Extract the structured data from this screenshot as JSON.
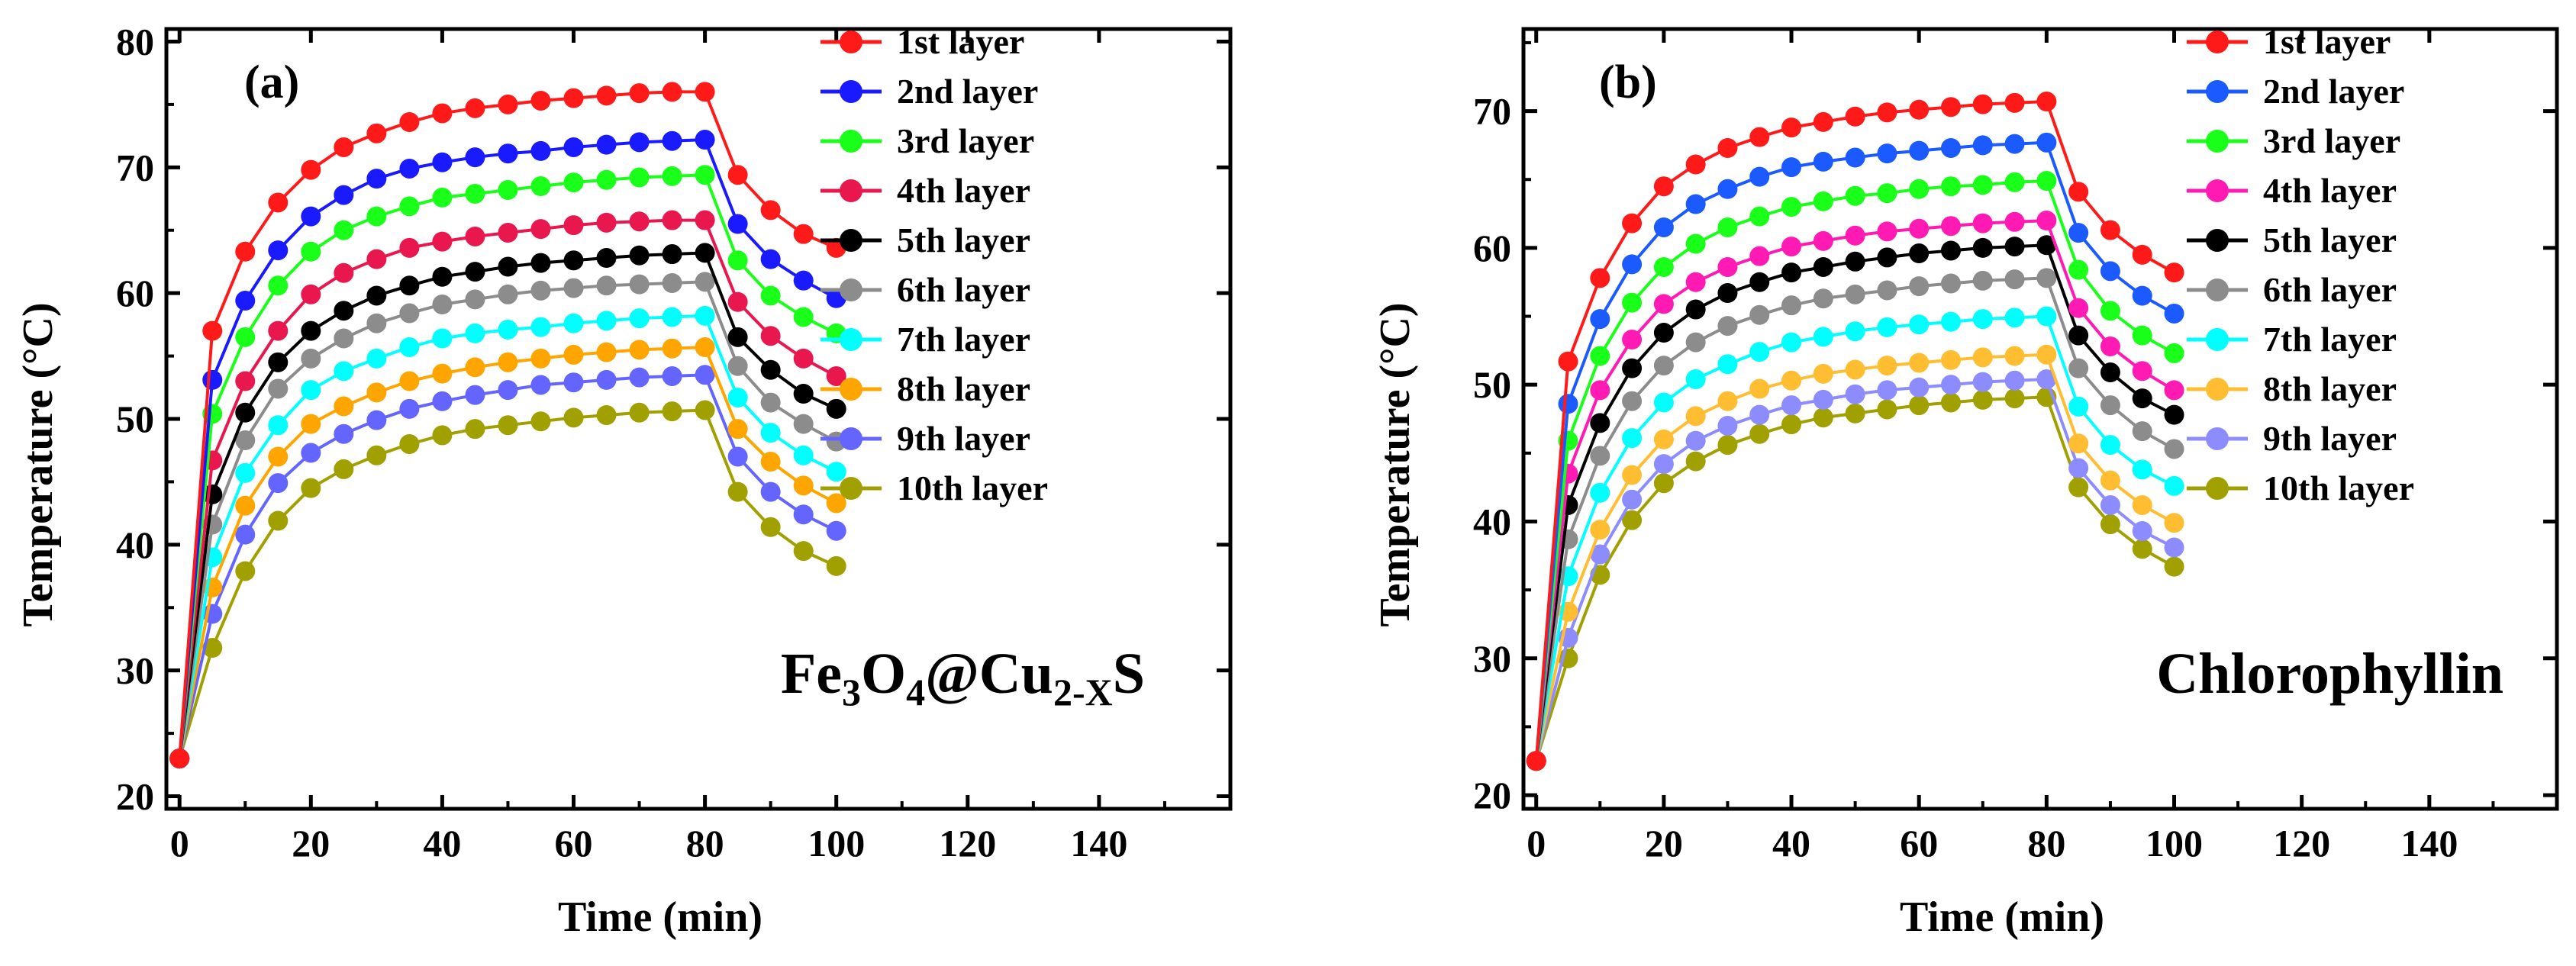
{
  "chart_data": [
    {
      "type": "line",
      "panel_label": "(a)",
      "sample_label": {
        "parts": [
          {
            "text": "Fe",
            "sub": false
          },
          {
            "text": "3",
            "sub": true
          },
          {
            "text": "O",
            "sub": false
          },
          {
            "text": "4",
            "sub": true
          },
          {
            "text": "@Cu",
            "sub": false
          },
          {
            "text": "2-X",
            "sub": true
          },
          {
            "text": "S",
            "sub": false
          }
        ]
      },
      "xlabel": "Time (min)",
      "ylabel": "Temperature (°C)",
      "xlim": [
        -2,
        160
      ],
      "ylim": [
        19,
        81
      ],
      "xticks": [
        0,
        20,
        40,
        60,
        80,
        100,
        120,
        140
      ],
      "yticks": [
        20,
        30,
        40,
        50,
        60,
        70,
        80
      ],
      "legend_position": "top-right",
      "x": [
        0,
        5,
        10,
        15,
        20,
        25,
        30,
        35,
        40,
        45,
        50,
        55,
        60,
        65,
        70,
        75,
        80,
        85,
        90,
        95,
        100
      ],
      "series": [
        {
          "name": "1st layer",
          "color": "#ff1a1a",
          "values": [
            23,
            57,
            63.3,
            67.2,
            69.8,
            71.6,
            72.7,
            73.6,
            74.3,
            74.7,
            75,
            75.3,
            75.5,
            75.7,
            75.9,
            76,
            76,
            69.4,
            66.6,
            64.7,
            63.6
          ]
        },
        {
          "name": "2nd layer",
          "color": "#1a1aff",
          "values": [
            23,
            53.1,
            59.4,
            63.4,
            66.1,
            67.8,
            69.1,
            69.9,
            70.4,
            70.8,
            71.1,
            71.3,
            71.6,
            71.8,
            72,
            72.1,
            72.2,
            65.5,
            62.7,
            61,
            59.6
          ]
        },
        {
          "name": "3rd layer",
          "color": "#1aff1a",
          "values": [
            23,
            50.4,
            56.5,
            60.6,
            63.3,
            65,
            66.1,
            66.9,
            67.6,
            67.9,
            68.2,
            68.5,
            68.8,
            69,
            69.2,
            69.3,
            69.4,
            62.6,
            59.8,
            58.1,
            56.8
          ]
        },
        {
          "name": "4th layer",
          "color": "#e8174e",
          "values": [
            23,
            46.7,
            53,
            57,
            59.9,
            61.6,
            62.7,
            63.6,
            64.1,
            64.5,
            64.8,
            65.1,
            65.4,
            65.6,
            65.7,
            65.8,
            65.8,
            59.3,
            56.6,
            54.8,
            53.4
          ]
        },
        {
          "name": "5th layer",
          "color": "#000000",
          "values": [
            23,
            44,
            50.5,
            54.5,
            57,
            58.6,
            59.8,
            60.6,
            61.3,
            61.7,
            62.1,
            62.4,
            62.6,
            62.8,
            63,
            63.1,
            63.2,
            56.5,
            53.9,
            52,
            50.8
          ]
        },
        {
          "name": "6th layer",
          "color": "#8c8c8c",
          "values": [
            23,
            41.6,
            48.3,
            52.4,
            54.8,
            56.4,
            57.6,
            58.4,
            59.1,
            59.5,
            59.9,
            60.2,
            60.4,
            60.6,
            60.7,
            60.8,
            60.9,
            54.2,
            51.3,
            49.6,
            48.2
          ]
        },
        {
          "name": "7th  layer",
          "color": "#00ffff",
          "values": [
            23,
            39,
            45.7,
            49.5,
            52.3,
            53.8,
            54.8,
            55.7,
            56.4,
            56.8,
            57.1,
            57.3,
            57.6,
            57.8,
            58,
            58.1,
            58.2,
            51.7,
            48.9,
            47.1,
            45.8
          ]
        },
        {
          "name": "8th  layer",
          "color": "#ffa500",
          "values": [
            23,
            36.6,
            43.1,
            47,
            49.6,
            51,
            52.1,
            53,
            53.6,
            54.1,
            54.5,
            54.8,
            55.1,
            55.3,
            55.5,
            55.6,
            55.7,
            49.2,
            46.6,
            44.7,
            43.3
          ]
        },
        {
          "name": "9th  layer",
          "color": "#6464ff",
          "values": [
            23,
            34.5,
            40.8,
            44.9,
            47.3,
            48.8,
            49.9,
            50.8,
            51.4,
            51.9,
            52.3,
            52.7,
            52.9,
            53.1,
            53.3,
            53.4,
            53.5,
            47,
            44.2,
            42.4,
            41.1
          ]
        },
        {
          "name": "10th  layer",
          "color": "#a0a000",
          "values": [
            23,
            31.8,
            37.9,
            41.9,
            44.5,
            46,
            47.1,
            48,
            48.7,
            49.2,
            49.5,
            49.8,
            50.1,
            50.3,
            50.5,
            50.6,
            50.7,
            44.2,
            41.4,
            39.5,
            38.3
          ]
        }
      ]
    },
    {
      "type": "line",
      "panel_label": "(b)",
      "sample_label": {
        "parts": [
          {
            "text": "Chlorophyllin",
            "sub": false
          }
        ]
      },
      "xlabel": "Time (min)",
      "ylabel": "Temperature (°C)",
      "xlim": [
        -2,
        160
      ],
      "ylim": [
        19,
        76
      ],
      "xticks": [
        0,
        20,
        40,
        60,
        80,
        100,
        120,
        140
      ],
      "yticks": [
        20,
        30,
        40,
        50,
        60,
        70
      ],
      "legend_position": "top-right",
      "x": [
        0,
        5,
        10,
        15,
        20,
        25,
        30,
        35,
        40,
        45,
        50,
        55,
        60,
        65,
        70,
        75,
        80,
        85,
        90,
        95,
        100
      ],
      "series": [
        {
          "name": "1st layer",
          "color": "#ff1a1a",
          "values": [
            22.5,
            51.7,
            57.8,
            61.8,
            64.5,
            66.1,
            67.3,
            68.1,
            68.8,
            69.2,
            69.6,
            69.9,
            70.1,
            70.3,
            70.5,
            70.6,
            70.7,
            64.1,
            61.3,
            59.5,
            58.2
          ]
        },
        {
          "name": "2nd layer",
          "color": "#1a5aff",
          "values": [
            22.5,
            48.6,
            54.8,
            58.8,
            61.5,
            63.2,
            64.3,
            65.2,
            65.9,
            66.3,
            66.6,
            66.9,
            67.1,
            67.3,
            67.5,
            67.6,
            67.7,
            61.1,
            58.3,
            56.5,
            55.2
          ]
        },
        {
          "name": "3rd layer",
          "color": "#1aff1a",
          "values": [
            22.5,
            45.9,
            52.1,
            56,
            58.6,
            60.3,
            61.5,
            62.3,
            63,
            63.4,
            63.8,
            64,
            64.3,
            64.5,
            64.6,
            64.8,
            64.9,
            58.4,
            55.4,
            53.6,
            52.3
          ]
        },
        {
          "name": "4th layer",
          "color": "#ff1ab4",
          "values": [
            22.5,
            43.5,
            49.6,
            53.3,
            55.9,
            57.5,
            58.6,
            59.4,
            60.1,
            60.5,
            60.9,
            61.2,
            61.4,
            61.6,
            61.8,
            61.9,
            62,
            55.6,
            52.8,
            51,
            49.6
          ]
        },
        {
          "name": "5th layer",
          "color": "#000000",
          "values": [
            22.5,
            41.2,
            47.2,
            51.2,
            53.8,
            55.5,
            56.7,
            57.5,
            58.2,
            58.6,
            59,
            59.3,
            59.6,
            59.8,
            60,
            60.1,
            60.2,
            53.6,
            50.9,
            49,
            47.8
          ]
        },
        {
          "name": "6th layer",
          "color": "#8c8c8c",
          "values": [
            22.5,
            38.7,
            44.8,
            48.8,
            51.4,
            53.1,
            54.3,
            55.1,
            55.8,
            56.3,
            56.6,
            56.9,
            57.2,
            57.4,
            57.6,
            57.7,
            57.8,
            51.2,
            48.5,
            46.6,
            45.3
          ]
        },
        {
          "name": "7th layer",
          "color": "#00ffff",
          "values": [
            22.5,
            36,
            42.1,
            46.1,
            48.7,
            50.4,
            51.5,
            52.4,
            53.1,
            53.5,
            53.9,
            54.2,
            54.4,
            54.6,
            54.8,
            54.9,
            55,
            48.4,
            45.6,
            43.8,
            42.6
          ]
        },
        {
          "name": "8th layer",
          "color": "#ffbe32",
          "values": [
            22.5,
            33.4,
            39.4,
            43.4,
            46,
            47.7,
            48.8,
            49.7,
            50.3,
            50.8,
            51.1,
            51.4,
            51.6,
            51.8,
            52,
            52.1,
            52.2,
            45.7,
            43,
            41.2,
            39.9
          ]
        },
        {
          "name": "9th layer",
          "color": "#8c8cff",
          "values": [
            22.5,
            31.5,
            37.6,
            41.6,
            44.2,
            45.9,
            47,
            47.8,
            48.5,
            48.9,
            49.3,
            49.6,
            49.8,
            50,
            50.2,
            50.3,
            50.4,
            43.9,
            41.2,
            39.3,
            38.1
          ]
        },
        {
          "name": "10th layer",
          "color": "#a0a000",
          "values": [
            22.5,
            30,
            36.1,
            40.1,
            42.8,
            44.4,
            45.6,
            46.4,
            47.1,
            47.6,
            47.9,
            48.2,
            48.5,
            48.7,
            48.9,
            49,
            49.1,
            42.5,
            39.8,
            38,
            36.7
          ]
        }
      ]
    }
  ]
}
